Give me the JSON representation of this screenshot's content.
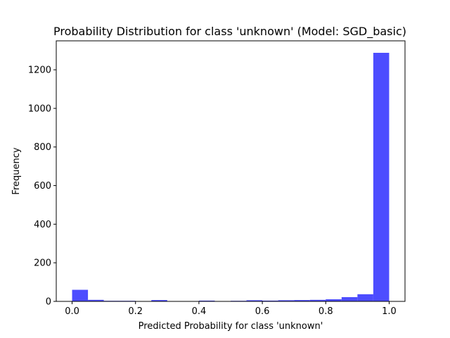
{
  "chart_data": {
    "type": "bar",
    "title": "Probability Distribution for class 'unknown' (Model: SGD_basic)",
    "xlabel": "Predicted Probability for class 'unknown'",
    "ylabel": "Frequency",
    "xlim": [
      -0.05,
      1.05
    ],
    "ylim": [
      0,
      1350
    ],
    "xticks": [
      "0.0",
      "0.2",
      "0.4",
      "0.6",
      "0.8",
      "1.0"
    ],
    "yticks": [
      "0",
      "200",
      "400",
      "600",
      "800",
      "1000",
      "1200"
    ],
    "bar_color": "#4d4dff",
    "bins": [
      {
        "x0": 0.0,
        "x1": 0.05,
        "value": 60
      },
      {
        "x0": 0.05,
        "x1": 0.1,
        "value": 8
      },
      {
        "x0": 0.1,
        "x1": 0.15,
        "value": 3
      },
      {
        "x0": 0.15,
        "x1": 0.2,
        "value": 3
      },
      {
        "x0": 0.2,
        "x1": 0.25,
        "value": 1
      },
      {
        "x0": 0.25,
        "x1": 0.3,
        "value": 7
      },
      {
        "x0": 0.3,
        "x1": 0.35,
        "value": 1
      },
      {
        "x0": 0.35,
        "x1": 0.4,
        "value": 1
      },
      {
        "x0": 0.4,
        "x1": 0.45,
        "value": 4
      },
      {
        "x0": 0.45,
        "x1": 0.5,
        "value": 1
      },
      {
        "x0": 0.5,
        "x1": 0.55,
        "value": 3
      },
      {
        "x0": 0.55,
        "x1": 0.6,
        "value": 6
      },
      {
        "x0": 0.6,
        "x1": 0.65,
        "value": 4
      },
      {
        "x0": 0.65,
        "x1": 0.7,
        "value": 6
      },
      {
        "x0": 0.7,
        "x1": 0.75,
        "value": 7
      },
      {
        "x0": 0.75,
        "x1": 0.8,
        "value": 8
      },
      {
        "x0": 0.8,
        "x1": 0.85,
        "value": 11
      },
      {
        "x0": 0.85,
        "x1": 0.9,
        "value": 22
      },
      {
        "x0": 0.9,
        "x1": 0.95,
        "value": 37
      },
      {
        "x0": 0.95,
        "x1": 1.0,
        "value": 1288
      }
    ]
  }
}
